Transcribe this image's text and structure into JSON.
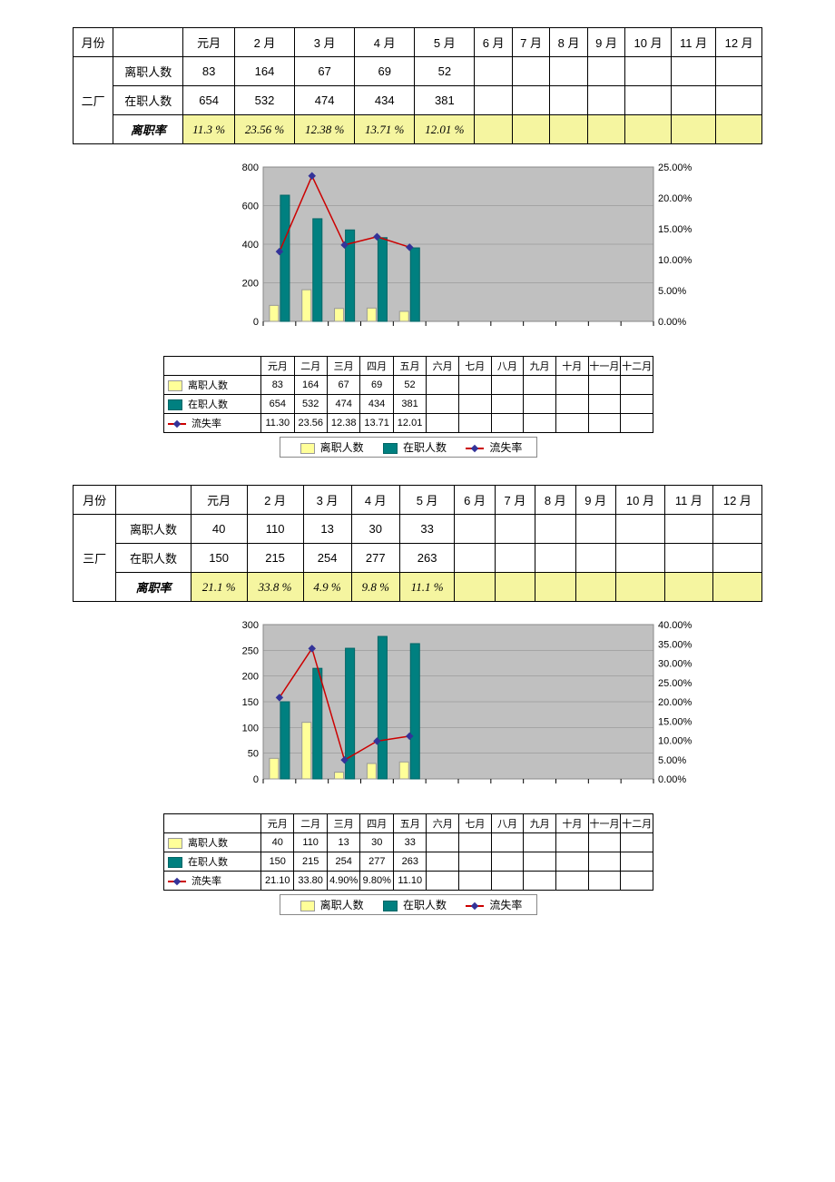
{
  "months_header": [
    "月份",
    "",
    "元月",
    "2 月",
    "3 月",
    "4 月",
    "5 月",
    "6 月",
    "7 月",
    "8 月",
    "9 月",
    "10 月",
    "11 月",
    "12 月"
  ],
  "factory2": {
    "name": "二厂",
    "rows": {
      "leave_label": "离职人数",
      "leave": [
        "83",
        "164",
        "67",
        "69",
        "52",
        "",
        "",
        "",
        "",
        "",
        "",
        ""
      ],
      "onjob_label": "在职人数",
      "onjob": [
        "654",
        "532",
        "474",
        "434",
        "381",
        "",
        "",
        "",
        "",
        "",
        "",
        ""
      ],
      "rate_label": "离职率",
      "rate": [
        "11.3 %",
        "23.56 %",
        "12.38 %",
        "13.71 %",
        "12.01 %",
        "",
        "",
        "",
        "",
        "",
        "",
        ""
      ]
    },
    "chart": {
      "categories": [
        "元月",
        "二月",
        "三月",
        "四月",
        "五月",
        "六月",
        "七月",
        "八月",
        "九月",
        "十月",
        "十一月",
        "十二月"
      ],
      "leave": [
        83,
        164,
        67,
        69,
        52
      ],
      "onjob": [
        654,
        532,
        474,
        434,
        381
      ],
      "rate_pct": [
        11.3,
        23.56,
        12.38,
        13.71,
        12.01
      ],
      "y_left_max": 800,
      "y_left_step": 200,
      "y_right_max": 25.0,
      "y_right_step": 5.0,
      "bar_leave_color": "#ffff99",
      "bar_onjob_color": "#008080",
      "line_color": "#cc0000",
      "marker_color": "#333399",
      "plot_bg": "#c0c0c0",
      "grid_color": "#888888",
      "table_rows": {
        "leave": [
          "83",
          "164",
          "67",
          "69",
          "52",
          "",
          "",
          "",
          "",
          "",
          "",
          ""
        ],
        "onjob": [
          "654",
          "532",
          "474",
          "434",
          "381",
          "",
          "",
          "",
          "",
          "",
          "",
          ""
        ],
        "rate": [
          "11.30",
          "23.56",
          "12.38",
          "13.71",
          "12.01",
          "",
          "",
          "",
          "",
          "",
          "",
          ""
        ]
      },
      "series_labels": {
        "leave": "离职人数",
        "onjob": "在职人数",
        "rate": "流失率"
      }
    }
  },
  "factory3": {
    "name": "三厂",
    "rows": {
      "leave_label": "离职人数",
      "leave": [
        "40",
        "110",
        "13",
        "30",
        "33",
        "",
        "",
        "",
        "",
        "",
        "",
        ""
      ],
      "onjob_label": "在职人数",
      "onjob": [
        "150",
        "215",
        "254",
        "277",
        "263",
        "",
        "",
        "",
        "",
        "",
        "",
        ""
      ],
      "rate_label": "离职率",
      "rate": [
        "21.1 %",
        "33.8 %",
        "4.9 %",
        "9.8 %",
        "11.1 %",
        "",
        "",
        "",
        "",
        "",
        "",
        ""
      ]
    },
    "chart": {
      "categories": [
        "元月",
        "二月",
        "三月",
        "四月",
        "五月",
        "六月",
        "七月",
        "八月",
        "九月",
        "十月",
        "十一月",
        "十二月"
      ],
      "leave": [
        40,
        110,
        13,
        30,
        33
      ],
      "onjob": [
        150,
        215,
        254,
        277,
        263
      ],
      "rate_pct": [
        21.1,
        33.8,
        4.9,
        9.8,
        11.1
      ],
      "y_left_max": 300,
      "y_left_step": 50,
      "y_right_max": 40.0,
      "y_right_step": 5.0,
      "bar_leave_color": "#ffff99",
      "bar_onjob_color": "#008080",
      "line_color": "#cc0000",
      "marker_color": "#333399",
      "plot_bg": "#c0c0c0",
      "grid_color": "#888888",
      "table_rows": {
        "leave": [
          "40",
          "110",
          "13",
          "30",
          "33",
          "",
          "",
          "",
          "",
          "",
          "",
          ""
        ],
        "onjob": [
          "150",
          "215",
          "254",
          "277",
          "263",
          "",
          "",
          "",
          "",
          "",
          "",
          ""
        ],
        "rate": [
          "21.10",
          "33.80",
          "4.90%",
          "9.80%",
          "11.10",
          "",
          "",
          "",
          "",
          "",
          "",
          ""
        ]
      },
      "series_labels": {
        "leave": "离职人数",
        "onjob": "在职人数",
        "rate": "流失率"
      }
    }
  }
}
